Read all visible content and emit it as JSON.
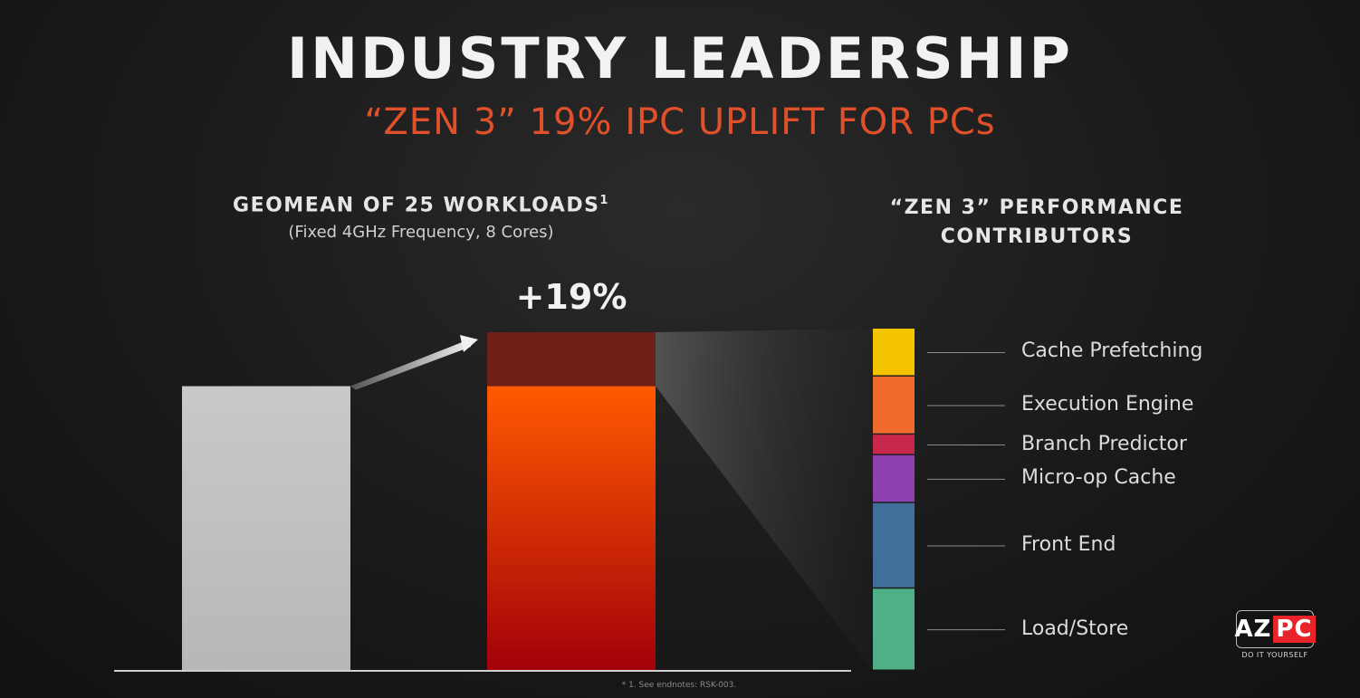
{
  "title": "INDUSTRY LEADERSHIP",
  "subtitle": "“ZEN 3” 19% IPC UPLIFT FOR PCs",
  "left_heading": "GEOMEAN OF 25 WORKLOADS",
  "left_heading_sup": "1",
  "left_subheading": "(Fixed 4GHz Frequency, 8 Cores)",
  "right_heading_line1": "“ZEN 3” PERFORMANCE",
  "right_heading_line2": "CONTRIBUTORS",
  "uplift_label": "+19%",
  "footnote": "* 1. See endnotes: RSK-003.",
  "logo": {
    "text_left": "AZ",
    "text_right": "PC",
    "tagline": "DO IT YOURSELF"
  },
  "colors": {
    "baseline_bar": "#c2c4c4",
    "zen3_bar_top": "#ff5a00",
    "zen3_bar_bottom": "#a3000a",
    "uplift_segment": "#6e2018",
    "accent": "#e0502a"
  },
  "chart_data": {
    "type": "bar",
    "categories": [
      "",
      ""
    ],
    "baseline": 100,
    "uplift_percent": 19,
    "values": [
      100,
      119
    ],
    "ylim": [
      0,
      120
    ],
    "contributors": {
      "type": "stacked-bar",
      "total_percent": 19,
      "segments": [
        {
          "name": "Cache Prefetching",
          "share": 0.14,
          "color": "#f5c400"
        },
        {
          "name": "Execution Engine",
          "share": 0.17,
          "color": "#f06a2a"
        },
        {
          "name": "Branch Predictor",
          "share": 0.06,
          "color": "#c8284e"
        },
        {
          "name": "Micro-op Cache",
          "share": 0.14,
          "color": "#8e3fb0"
        },
        {
          "name": "Front End",
          "share": 0.25,
          "color": "#3f6f9a"
        },
        {
          "name": "Load/Store",
          "share": 0.24,
          "color": "#4fb088"
        }
      ]
    }
  }
}
